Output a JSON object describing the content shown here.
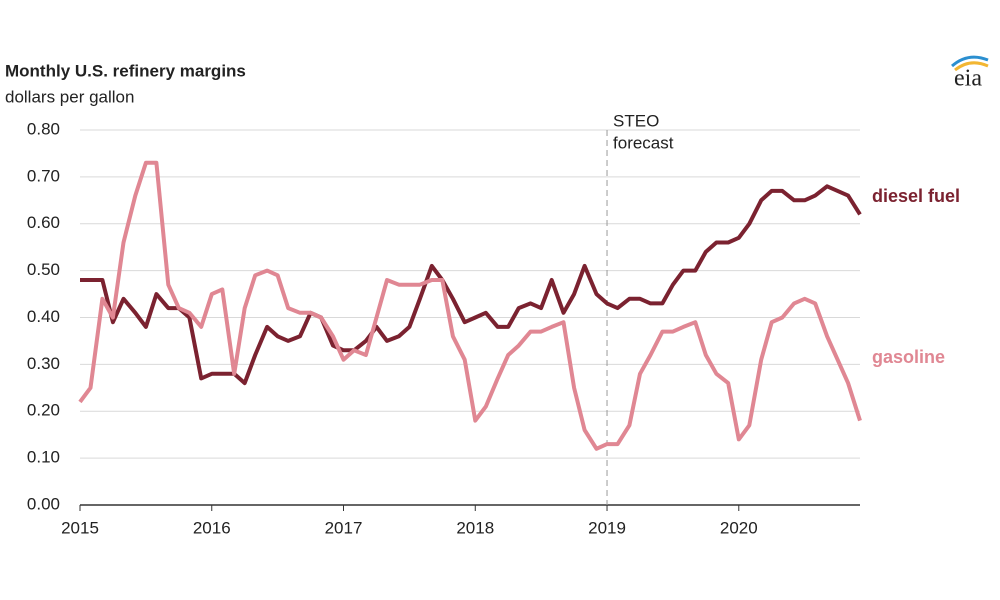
{
  "chart_data": {
    "type": "line",
    "title": "Monthly U.S. refinery margins",
    "subtitle": "dollars per gallon",
    "logo": "eia",
    "annotation": {
      "lines": [
        "STEO",
        "forecast"
      ],
      "x": 2019
    },
    "x": [
      2015,
      2015.08,
      2015.17,
      2015.25,
      2015.33,
      2015.42,
      2015.5,
      2015.58,
      2015.67,
      2015.75,
      2015.83,
      2015.92,
      2016,
      2016.08,
      2016.17,
      2016.25,
      2016.33,
      2016.42,
      2016.5,
      2016.58,
      2016.67,
      2016.75,
      2016.83,
      2016.92,
      2017,
      2017.08,
      2017.17,
      2017.25,
      2017.33,
      2017.42,
      2017.5,
      2017.58,
      2017.67,
      2017.75,
      2017.83,
      2017.92,
      2018,
      2018.08,
      2018.17,
      2018.25,
      2018.33,
      2018.42,
      2018.5,
      2018.58,
      2018.67,
      2018.75,
      2018.83,
      2018.92,
      2019,
      2019.08,
      2019.17,
      2019.25,
      2019.33,
      2019.42,
      2019.5,
      2019.58,
      2019.67,
      2019.75,
      2019.83,
      2019.92,
      2020,
      2020.08,
      2020.17,
      2020.25,
      2020.33,
      2020.42,
      2020.5,
      2020.58,
      2020.67,
      2020.75,
      2020.83,
      2020.92
    ],
    "series": [
      {
        "name": "diesel fuel",
        "color": "#7b2230",
        "values": [
          0.48,
          0.48,
          0.48,
          0.39,
          0.44,
          0.41,
          0.38,
          0.45,
          0.42,
          0.42,
          0.4,
          0.27,
          0.28,
          0.28,
          0.28,
          0.26,
          0.32,
          0.38,
          0.36,
          0.35,
          0.36,
          0.41,
          0.4,
          0.34,
          0.33,
          0.33,
          0.35,
          0.38,
          0.35,
          0.36,
          0.38,
          0.44,
          0.51,
          0.48,
          0.44,
          0.39,
          0.4,
          0.41,
          0.38,
          0.38,
          0.42,
          0.43,
          0.42,
          0.48,
          0.41,
          0.45,
          0.51,
          0.45,
          0.43,
          0.42,
          0.44,
          0.44,
          0.43,
          0.43,
          0.47,
          0.5,
          0.5,
          0.54,
          0.56,
          0.56,
          0.57,
          0.6,
          0.65,
          0.67,
          0.67,
          0.65,
          0.65,
          0.66,
          0.68,
          0.67,
          0.66,
          0.62
        ]
      },
      {
        "name": "gasoline",
        "color": "#e08793",
        "values": [
          0.22,
          0.25,
          0.44,
          0.4,
          0.56,
          0.66,
          0.73,
          0.73,
          0.47,
          0.42,
          0.41,
          0.38,
          0.45,
          0.46,
          0.28,
          0.42,
          0.49,
          0.5,
          0.49,
          0.42,
          0.41,
          0.41,
          0.4,
          0.36,
          0.31,
          0.33,
          0.32,
          0.4,
          0.48,
          0.47,
          0.47,
          0.47,
          0.48,
          0.48,
          0.36,
          0.31,
          0.18,
          0.21,
          0.27,
          0.32,
          0.34,
          0.37,
          0.37,
          0.38,
          0.39,
          0.25,
          0.16,
          0.12,
          0.13,
          0.13,
          0.17,
          0.28,
          0.32,
          0.37,
          0.37,
          0.38,
          0.39,
          0.32,
          0.28,
          0.26,
          0.14,
          0.17,
          0.31,
          0.39,
          0.4,
          0.43,
          0.44,
          0.43,
          0.36,
          0.31,
          0.26,
          0.18
        ]
      }
    ],
    "xlim": [
      2015,
      2020.92
    ],
    "xticks": [
      2015,
      2016,
      2017,
      2018,
      2019,
      2020
    ],
    "ylim": [
      0,
      0.8
    ],
    "yticks": [
      {
        "value": 0,
        "label": "0.00"
      },
      {
        "value": 0.1,
        "label": "0.10"
      },
      {
        "value": 0.2,
        "label": "0.20"
      },
      {
        "value": 0.3,
        "label": "0.30"
      },
      {
        "value": 0.4,
        "label": "0.40"
      },
      {
        "value": 0.5,
        "label": "0.50"
      },
      {
        "value": 0.6,
        "label": "0.60"
      },
      {
        "value": 0.7,
        "label": "0.70"
      },
      {
        "value": 0.8,
        "label": "0.80"
      }
    ],
    "grid": true
  }
}
